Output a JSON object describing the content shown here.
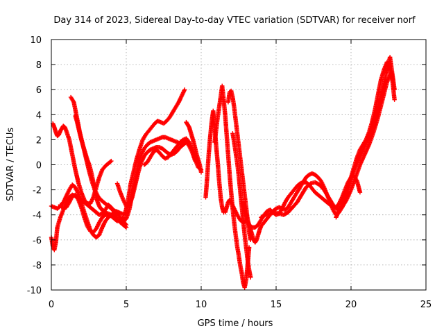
{
  "chart_data": {
    "type": "scatter",
    "title": "Day 314 of 2023, Sidereal Day-to-day VTEC variation (SDTVAR) for receiver norf",
    "xlabel": "GPS time / hours",
    "ylabel": "SDTVAR / TECUs",
    "xlim": [
      0,
      25
    ],
    "ylim": [
      -10,
      10
    ],
    "xticks": [
      0,
      5,
      10,
      15,
      20,
      25
    ],
    "yticks": [
      -10,
      -8,
      -6,
      -4,
      -2,
      0,
      2,
      4,
      6,
      8,
      10
    ],
    "grid": true,
    "legend": "none",
    "marker": "+",
    "color": "#ff0000",
    "series": [
      {
        "x": [
          0.0,
          0.1,
          0.2,
          0.3,
          0.4,
          0.6,
          0.8,
          1.0,
          1.2,
          1.4,
          1.6,
          1.8,
          2.0,
          2.2,
          2.4,
          2.6,
          2.8,
          3.0,
          3.2,
          3.4,
          3.6,
          3.8,
          4.0,
          4.2,
          4.4,
          4.6,
          4.8,
          5.0
        ],
        "y": [
          -5.8,
          -6.5,
          -6.8,
          -6.2,
          -5.0,
          -4.2,
          -3.6,
          -3.0,
          -2.6,
          -2.4,
          -2.5,
          -2.6,
          -2.8,
          -3.0,
          -3.2,
          -3.4,
          -3.6,
          -3.8,
          -4.0,
          -3.9,
          -3.6,
          -3.2,
          -3.4,
          -3.8,
          -4.3,
          -4.6,
          -4.8,
          -5.0
        ]
      },
      {
        "x": [
          0.0,
          0.2,
          0.4,
          0.6,
          0.8,
          1.0,
          1.2,
          1.4,
          1.6,
          1.8,
          2.0,
          2.2,
          2.4,
          2.6,
          2.8,
          3.0,
          3.2,
          3.4,
          3.6,
          3.8,
          4.0,
          4.2,
          4.4,
          4.6,
          4.8,
          5.0
        ],
        "y": [
          -3.3,
          -3.4,
          -3.5,
          -3.3,
          -3.0,
          -2.5,
          -2.0,
          -1.6,
          -1.8,
          -2.3,
          -3.0,
          -3.8,
          -4.5,
          -5.2,
          -5.6,
          -5.8,
          -5.6,
          -5.0,
          -4.5,
          -4.2,
          -4.0,
          -3.8,
          -3.9,
          -4.2,
          -4.5,
          -4.8
        ]
      },
      {
        "x": [
          1.3,
          1.5,
          1.7,
          1.9,
          2.1,
          2.3,
          2.5,
          2.7,
          2.9,
          3.1,
          3.3,
          3.5,
          3.7,
          3.9,
          4.1,
          4.3,
          4.5,
          4.7,
          4.9,
          5.1,
          5.3,
          5.5,
          5.7,
          5.9,
          6.1,
          6.3,
          6.5,
          6.7,
          6.9,
          7.1,
          7.3,
          7.5,
          7.7,
          7.9,
          8.1,
          8.3,
          8.5,
          8.7,
          8.9
        ],
        "y": [
          5.4,
          5.0,
          3.8,
          2.6,
          1.6,
          0.6,
          -0.4,
          -1.3,
          -2.0,
          -2.5,
          -2.8,
          -3.0,
          -3.2,
          -3.4,
          -3.6,
          -3.7,
          -3.8,
          -3.9,
          -4.0,
          -3.0,
          -1.5,
          -0.5,
          0.5,
          1.3,
          2.0,
          2.4,
          2.7,
          3.0,
          3.3,
          3.5,
          3.4,
          3.3,
          3.5,
          3.8,
          4.2,
          4.6,
          5.0,
          5.5,
          6.0
        ]
      },
      {
        "x": [
          0.1,
          0.2,
          0.3,
          0.4,
          0.5,
          0.6,
          0.7,
          0.8,
          0.9,
          1.0,
          1.2,
          1.4,
          1.6,
          1.8,
          2.0,
          2.2,
          2.4,
          2.6,
          2.8,
          3.0,
          3.2,
          3.4,
          3.6,
          3.8,
          4.0
        ],
        "y": [
          3.3,
          3.0,
          2.6,
          2.3,
          2.4,
          2.7,
          2.9,
          3.1,
          3.0,
          2.7,
          2.0,
          0.8,
          -0.4,
          -1.4,
          -2.2,
          -2.8,
          -3.1,
          -3.1,
          -2.6,
          -1.8,
          -1.0,
          -0.4,
          -0.1,
          0.1,
          0.3
        ]
      },
      {
        "x": [
          1.6,
          1.7,
          1.8,
          1.9,
          2.0,
          2.1,
          2.2,
          2.3,
          2.4,
          2.5,
          2.6,
          2.7,
          2.8,
          2.9,
          3.0,
          3.1,
          3.2,
          3.3,
          3.4,
          3.5
        ],
        "y": [
          3.9,
          3.5,
          3.0,
          2.5,
          2.0,
          1.6,
          1.2,
          0.8,
          0.4,
          0.1,
          -0.3,
          -0.8,
          -1.4,
          -2.0,
          -2.6,
          -3.0,
          -3.3,
          -3.5,
          -3.6,
          -3.7
        ]
      },
      {
        "x": [
          0.6,
          0.8,
          1.0,
          1.2,
          1.4,
          1.6,
          1.8,
          2.0,
          2.2,
          2.4,
          2.6,
          2.8,
          3.0,
          3.2,
          3.4,
          3.6,
          3.8,
          4.0,
          4.2,
          4.4,
          4.6,
          4.8
        ],
        "y": [
          -3.2,
          -3.5,
          -3.4,
          -3.0,
          -2.5,
          -2.4,
          -2.8,
          -3.4,
          -4.2,
          -4.9,
          -5.3,
          -5.4,
          -5.1,
          -4.6,
          -4.2,
          -4.0,
          -4.0,
          -4.1,
          -4.3,
          -4.5,
          -4.4,
          -4.2
        ]
      },
      {
        "x": [
          3.4,
          3.6,
          3.8,
          4.0,
          4.2,
          4.4,
          4.6,
          4.8,
          5.0,
          5.2,
          5.4,
          5.6,
          5.8,
          6.0,
          6.2,
          6.4,
          6.6,
          6.8,
          7.0,
          7.2,
          7.4,
          7.6,
          7.8,
          8.0,
          8.2,
          8.4,
          8.6,
          8.8,
          9.0,
          9.2
        ],
        "y": [
          -3.6,
          -3.8,
          -3.9,
          -4.0,
          -4.2,
          -4.4,
          -4.5,
          -4.5,
          -4.3,
          -3.6,
          -2.4,
          -1.2,
          0.0,
          0.8,
          1.3,
          1.6,
          1.8,
          1.9,
          2.0,
          2.1,
          2.2,
          2.2,
          2.1,
          2.0,
          1.9,
          1.8,
          1.7,
          1.8,
          1.9,
          1.5
        ]
      },
      {
        "x": [
          4.4,
          4.6,
          4.8,
          5.0,
          5.2,
          5.4,
          5.6,
          5.8,
          6.0,
          6.2,
          6.4,
          6.6,
          6.8,
          7.0,
          7.2,
          7.4,
          7.6,
          7.8,
          8.0,
          8.2,
          8.4,
          8.6,
          8.8,
          9.0,
          9.2,
          9.4,
          9.6
        ],
        "y": [
          -1.5,
          -2.2,
          -2.8,
          -3.3,
          -3.2,
          -2.6,
          -1.6,
          -0.6,
          0.2,
          0.7,
          1.0,
          1.2,
          1.3,
          1.4,
          1.4,
          1.3,
          1.1,
          0.9,
          0.8,
          0.9,
          1.1,
          1.4,
          1.6,
          1.8,
          1.5,
          1.0,
          0.3
        ]
      },
      {
        "x": [
          6.2,
          6.4,
          6.6,
          6.8,
          7.0,
          7.2,
          7.4,
          7.6,
          7.8,
          8.0,
          8.2,
          8.4,
          8.6,
          8.8,
          9.0,
          9.2,
          9.4,
          9.6,
          9.8,
          10.0
        ],
        "y": [
          0.0,
          0.2,
          0.6,
          1.0,
          1.2,
          1.0,
          0.7,
          0.5,
          0.6,
          0.9,
          1.2,
          1.5,
          1.8,
          2.0,
          2.1,
          1.8,
          1.2,
          0.4,
          -0.2,
          -0.4
        ]
      },
      {
        "x": [
          9.0,
          9.1,
          9.2,
          9.3,
          9.4,
          9.5,
          9.6,
          9.7,
          9.8,
          9.9,
          10.0
        ],
        "y": [
          3.4,
          3.2,
          3.0,
          2.6,
          2.2,
          1.8,
          1.3,
          0.8,
          0.4,
          0.0,
          -0.6
        ]
      },
      {
        "x": [
          10.3,
          10.4,
          10.5,
          10.6,
          10.7,
          10.8,
          10.9,
          11.0,
          11.1,
          11.2,
          11.3,
          11.4,
          11.5,
          11.6,
          11.7,
          11.8,
          11.9,
          12.0,
          12.2,
          12.4,
          12.6,
          12.8,
          13.0
        ],
        "y": [
          -2.6,
          -1.0,
          0.8,
          2.2,
          3.4,
          4.3,
          3.0,
          1.5,
          0.2,
          -1.3,
          -2.6,
          -3.4,
          -3.8,
          -3.8,
          -3.4,
          -3.0,
          -2.8,
          -3.0,
          -3.5,
          -4.0,
          -4.4,
          -4.6,
          -4.5
        ]
      },
      {
        "x": [
          10.9,
          11.0,
          11.1,
          11.2,
          11.3,
          11.4,
          11.5,
          11.6,
          11.7,
          11.8,
          11.9,
          12.0,
          12.1,
          12.2,
          12.3,
          12.4,
          12.5,
          12.6,
          12.7,
          12.8,
          12.9,
          13.0,
          13.1,
          13.2
        ],
        "y": [
          1.8,
          2.8,
          3.8,
          4.6,
          5.4,
          6.3,
          5.2,
          4.0,
          2.4,
          0.8,
          -0.8,
          -2.2,
          -3.5,
          -4.6,
          -5.6,
          -6.5,
          -7.2,
          -8.0,
          -8.6,
          -9.4,
          -9.8,
          -9.2,
          -8.0,
          -6.6
        ]
      },
      {
        "x": [
          11.8,
          11.9,
          12.0,
          12.1,
          12.2,
          12.3,
          12.4,
          12.5,
          12.6,
          12.7,
          12.8,
          12.9,
          13.0,
          13.1,
          13.2,
          13.3
        ],
        "y": [
          5.0,
          5.8,
          5.9,
          5.4,
          4.6,
          3.6,
          2.6,
          1.6,
          0.6,
          -0.4,
          -1.4,
          -2.4,
          -3.4,
          -4.4,
          -5.4,
          -6.0
        ]
      },
      {
        "x": [
          12.1,
          12.2,
          12.3,
          12.4,
          12.5,
          12.6,
          12.7,
          12.8,
          12.9,
          13.0,
          13.1,
          13.2,
          13.3
        ],
        "y": [
          2.5,
          1.8,
          1.0,
          0.2,
          -0.8,
          -2.0,
          -3.2,
          -4.4,
          -5.6,
          -6.6,
          -7.6,
          -8.4,
          -9.0
        ]
      },
      {
        "x": [
          12.8,
          12.9,
          13.0,
          13.1,
          13.2,
          13.3,
          13.4,
          13.5,
          13.6,
          13.7,
          13.8,
          13.9,
          14.0,
          14.2,
          14.4,
          14.6,
          14.8,
          15.0,
          15.2,
          15.4,
          15.6,
          15.8,
          16.0,
          16.2,
          16.4,
          16.6,
          16.8,
          17.0,
          17.2,
          17.4,
          17.6,
          17.8,
          18.0,
          18.2,
          18.4,
          18.6,
          18.8,
          19.0,
          19.2,
          19.4,
          19.6,
          19.8,
          20.0,
          20.2,
          20.4,
          20.6,
          20.8,
          21.0,
          21.2,
          21.4,
          21.6,
          21.8,
          22.0,
          22.2,
          22.4,
          22.6,
          22.8
        ],
        "y": [
          -3.0,
          -3.6,
          -4.0,
          -4.4,
          -4.8,
          -5.2,
          -5.6,
          -6.0,
          -6.2,
          -6.0,
          -5.6,
          -5.2,
          -4.9,
          -4.6,
          -4.3,
          -4.0,
          -3.7,
          -3.5,
          -3.4,
          -3.5,
          -3.6,
          -3.4,
          -3.0,
          -2.6,
          -2.2,
          -1.8,
          -1.4,
          -1.0,
          -0.8,
          -0.7,
          -0.8,
          -1.0,
          -1.3,
          -1.8,
          -2.4,
          -3.0,
          -3.6,
          -4.0,
          -3.8,
          -3.4,
          -2.8,
          -2.0,
          -1.0,
          -0.2,
          0.6,
          1.2,
          1.6,
          2.0,
          2.6,
          3.4,
          4.4,
          5.6,
          6.8,
          7.6,
          8.2,
          7.6,
          6.8
        ]
      },
      {
        "x": [
          13.0,
          13.2,
          13.4,
          13.6,
          13.8,
          14.0,
          14.2,
          14.4,
          14.6,
          14.8,
          15.0,
          15.2,
          15.4,
          15.6,
          15.8,
          16.0,
          16.2,
          16.4,
          16.6,
          16.8,
          17.0,
          17.2,
          17.4,
          17.6,
          17.8,
          18.0,
          18.2,
          18.4,
          18.6,
          18.8,
          19.0,
          19.2,
          19.4,
          19.6,
          19.8,
          20.0,
          20.2,
          20.4,
          20.6
        ],
        "y": [
          -4.4,
          -4.8,
          -5.0,
          -5.0,
          -4.8,
          -4.4,
          -4.0,
          -3.7,
          -3.6,
          -3.8,
          -4.0,
          -3.9,
          -3.5,
          -3.0,
          -2.6,
          -2.3,
          -2.0,
          -1.7,
          -1.5,
          -1.4,
          -1.4,
          -1.6,
          -1.9,
          -2.2,
          -2.4,
          -2.6,
          -2.8,
          -3.0,
          -3.2,
          -3.3,
          -3.4,
          -3.1,
          -2.6,
          -2.0,
          -1.4,
          -1.0,
          -0.9,
          -1.3,
          -2.2
        ]
      },
      {
        "x": [
          14.0,
          14.3,
          14.6,
          14.9,
          15.2,
          15.5,
          15.8,
          16.1,
          16.4,
          16.7,
          17.0,
          17.3,
          17.6,
          17.9,
          18.2,
          18.5,
          18.8,
          19.1,
          19.4,
          19.7,
          20.0,
          20.3,
          20.6,
          20.9,
          21.2,
          21.5,
          21.8,
          22.1,
          22.4,
          22.7,
          22.9
        ],
        "y": [
          -4.2,
          -4.0,
          -3.9,
          -3.8,
          -3.9,
          -4.0,
          -3.8,
          -3.4,
          -3.0,
          -2.4,
          -1.8,
          -1.5,
          -1.4,
          -1.6,
          -2.0,
          -2.6,
          -3.2,
          -3.6,
          -3.4,
          -2.8,
          -2.0,
          -1.0,
          0.0,
          0.8,
          1.6,
          2.6,
          3.8,
          5.2,
          6.6,
          7.4,
          5.2
        ]
      },
      {
        "x": [
          19.0,
          19.3,
          19.6,
          19.9,
          20.2,
          20.5,
          20.8,
          21.1,
          21.4,
          21.7,
          22.0,
          22.3,
          22.6,
          22.9
        ],
        "y": [
          -4.2,
          -3.4,
          -2.4,
          -1.4,
          -0.4,
          0.4,
          1.2,
          2.0,
          3.0,
          4.2,
          5.6,
          7.0,
          8.6,
          6.0
        ]
      }
    ]
  }
}
